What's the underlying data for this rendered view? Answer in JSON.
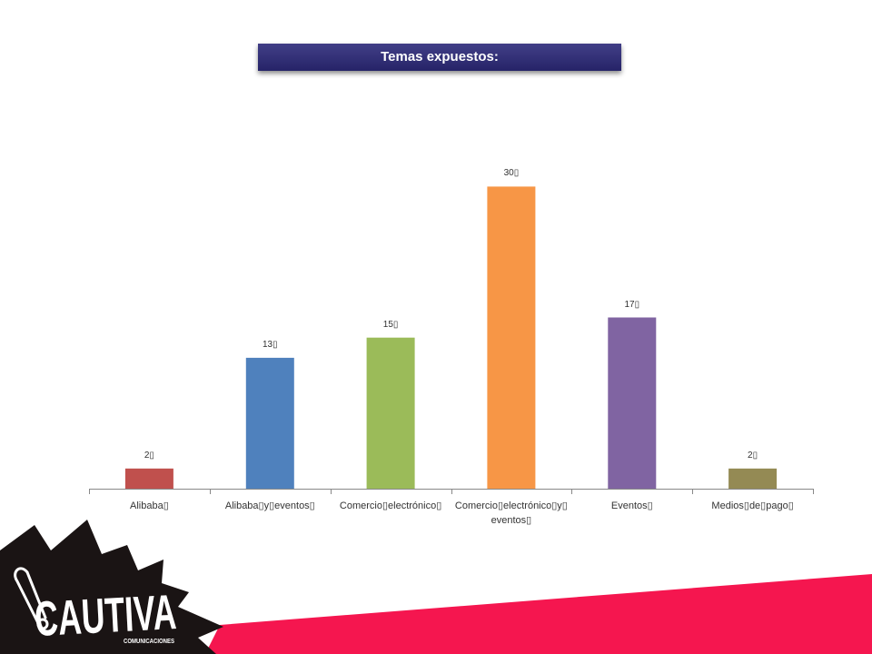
{
  "slide": {
    "title": "Temas expuestos:"
  },
  "chart_data": {
    "type": "bar",
    "categories": [
      "Alibaba▯",
      "Alibaba▯y▯eventos▯",
      "Comercio▯electrónico▯",
      "Comercio▯electrónico▯y▯\neventos▯",
      "Eventos▯",
      "Medios▯de▯pago▯"
    ],
    "values": [
      2,
      13,
      15,
      30,
      17,
      2
    ],
    "data_labels": [
      "2▯",
      "13▯",
      "15▯",
      "30▯",
      "17▯",
      "2▯"
    ],
    "colors": [
      "#C0504D",
      "#4F81BD",
      "#9BBB59",
      "#F79646",
      "#8064A2",
      "#948A54"
    ],
    "ylim": [
      0,
      35
    ],
    "grid": false,
    "legend": false,
    "y_axis_visible": false
  },
  "logo": {
    "wordmark": "CAUTIVA",
    "tagline": "COMUNICACIONES",
    "icon": "safety-pin-icon"
  },
  "theme": {
    "title_bar_color": "#2C2979",
    "accent_color": "#F5164F",
    "logo_color": "#1A1414",
    "axis_color": "#888888"
  }
}
